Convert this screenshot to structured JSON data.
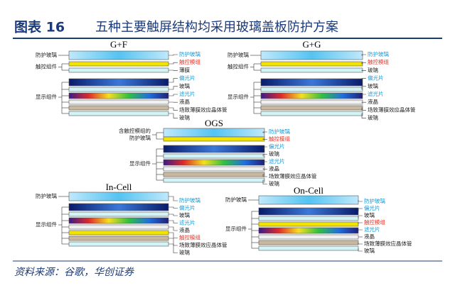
{
  "header": {
    "figure": "图表 16",
    "title": "五种主要触屏结构均采用玻璃盖板防护方案"
  },
  "diagrams": [
    {
      "title": "G+F",
      "left_labels": [
        [
          "防护玻璃"
        ],
        [
          "触控组件"
        ],
        [
          "显示组件"
        ]
      ],
      "right_labels": [
        {
          "text": "防护玻璃",
          "color": "#1a9ad6"
        },
        {
          "text": "触控模组",
          "color": "#e03a2f"
        },
        {
          "text": "薄膜",
          "color": "#222222"
        },
        {
          "text": "偏光片",
          "color": "#1a9ad6"
        },
        {
          "text": "玻璃",
          "color": "#222222"
        },
        {
          "text": "滤光片",
          "color": "#1a9ad6"
        },
        {
          "text": "液晶",
          "color": "#222222"
        },
        {
          "text": "场致薄膜效应晶体管",
          "color": "#222222"
        },
        {
          "text": "玻璃",
          "color": "#222222"
        }
      ]
    },
    {
      "title": "G+G",
      "left_labels": [
        [
          "防护玻璃"
        ],
        [
          "触控组件"
        ],
        [
          "显示组件"
        ]
      ],
      "right_labels": [
        {
          "text": "防护玻璃",
          "color": "#1a9ad6"
        },
        {
          "text": "触控模组",
          "color": "#e03a2f"
        },
        {
          "text": "玻璃",
          "color": "#222222"
        },
        {
          "text": "偏光片",
          "color": "#1a9ad6"
        },
        {
          "text": "玻璃",
          "color": "#222222"
        },
        {
          "text": "滤光片",
          "color": "#1a9ad6"
        },
        {
          "text": "液晶",
          "color": "#222222"
        },
        {
          "text": "场致薄膜效应晶体管",
          "color": "#222222"
        },
        {
          "text": "玻璃",
          "color": "#222222"
        }
      ]
    },
    {
      "title": "OGS",
      "left_labels": [
        [
          "含触控模组的",
          "防护玻璃"
        ],
        [
          "显示组件"
        ]
      ],
      "right_labels": [
        {
          "text": "防护玻璃",
          "color": "#1a9ad6"
        },
        {
          "text": "触控模组",
          "color": "#e03a2f"
        },
        {
          "text": "偏光片",
          "color": "#1a9ad6"
        },
        {
          "text": "玻璃",
          "color": "#222222"
        },
        {
          "text": "滤光片",
          "color": "#1a9ad6"
        },
        {
          "text": "液晶",
          "color": "#222222"
        },
        {
          "text": "场致薄膜效应晶体管",
          "color": "#222222"
        },
        {
          "text": "玻璃",
          "color": "#222222"
        }
      ]
    },
    {
      "title": "In-Cell",
      "left_labels": [
        [
          "防护玻璃"
        ],
        [
          "显示组件"
        ]
      ],
      "right_labels": [
        {
          "text": "防护玻璃",
          "color": "#1a9ad6"
        },
        {
          "text": "偏光片",
          "color": "#1a9ad6"
        },
        {
          "text": "玻璃",
          "color": "#222222"
        },
        {
          "text": "滤光片",
          "color": "#1a9ad6"
        },
        {
          "text": "液晶",
          "color": "#222222"
        },
        {
          "text": "触控模组",
          "color": "#e03a2f"
        },
        {
          "text": "场致薄膜效应晶体管",
          "color": "#222222"
        },
        {
          "text": "玻璃",
          "color": "#222222"
        }
      ]
    },
    {
      "title": "On-Cell",
      "left_labels": [
        [
          "防护玻璃"
        ],
        [
          "显示组件"
        ]
      ],
      "right_labels": [
        {
          "text": "防护玻璃",
          "color": "#1a9ad6"
        },
        {
          "text": "偏光片",
          "color": "#1a9ad6"
        },
        {
          "text": "玻璃",
          "color": "#222222"
        },
        {
          "text": "触控模组",
          "color": "#e03a2f"
        },
        {
          "text": "滤光片",
          "color": "#1a9ad6"
        },
        {
          "text": "液晶",
          "color": "#222222"
        },
        {
          "text": "场致薄膜效应晶体管",
          "color": "#222222"
        },
        {
          "text": "玻璃",
          "color": "#222222"
        }
      ]
    }
  ],
  "source": "资料来源：谷歌，华创证券"
}
